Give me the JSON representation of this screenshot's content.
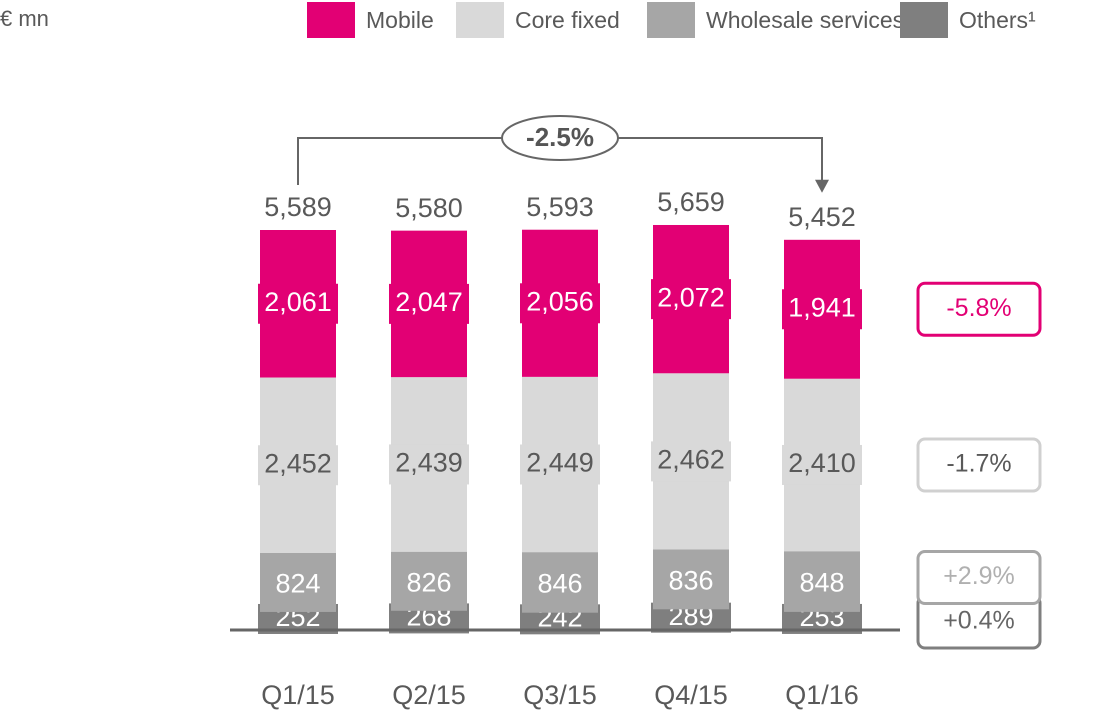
{
  "chart_data": {
    "type": "stacked_bar",
    "unit_label": "€ mn",
    "categories": [
      "Q1/15",
      "Q2/15",
      "Q3/15",
      "Q4/15",
      "Q1/16"
    ],
    "series": [
      {
        "name": "Mobile",
        "color": "#e20074",
        "values": [
          2061,
          2047,
          2056,
          2072,
          1941
        ],
        "value_labels": [
          "2,061",
          "2,047",
          "2,056",
          "2,072",
          "1,941"
        ],
        "change": "-5.8%"
      },
      {
        "name": "Core fixed",
        "color": "#d9d9d9",
        "values": [
          2452,
          2439,
          2449,
          2462,
          2410
        ],
        "value_labels": [
          "2,452",
          "2,439",
          "2,449",
          "2,462",
          "2,410"
        ],
        "change": "-1.7%"
      },
      {
        "name": "Wholesale services¹",
        "color": "#a6a6a6",
        "values": [
          824,
          826,
          846,
          836,
          848
        ],
        "change": "+2.9%"
      },
      {
        "name": "Others¹",
        "color": "#7f7f7f",
        "values": [
          252,
          268,
          242,
          289,
          253
        ],
        "change": "+0.4%"
      }
    ],
    "totals": {
      "values": [
        5589,
        5580,
        5593,
        5659,
        5452
      ],
      "value_labels": [
        "5,589",
        "5,580",
        "5,593",
        "5,659",
        "5,452"
      ]
    },
    "total_change": "-2.5%"
  }
}
